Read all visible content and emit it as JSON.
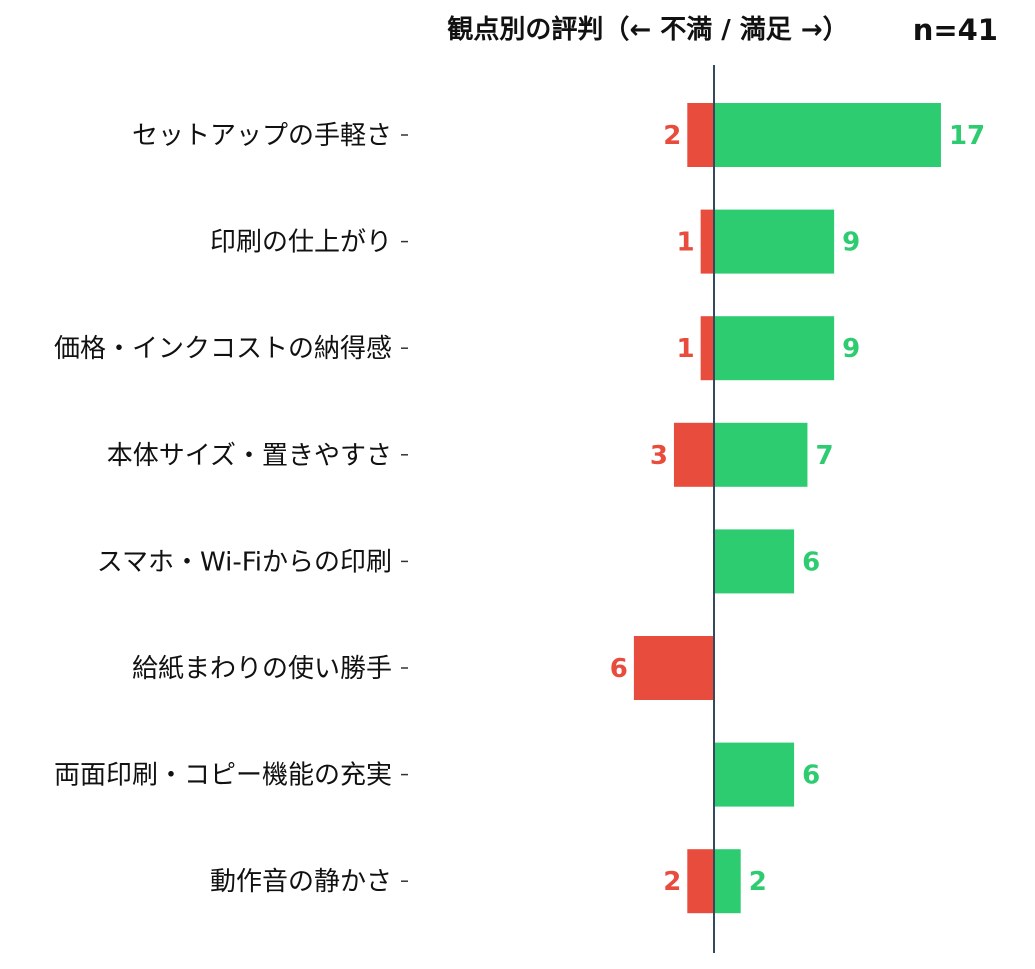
{
  "chart_data": {
    "type": "bar",
    "orientation": "horizontal-diverging",
    "title": "観点別の評判（← 不満 / 満足 →）",
    "sample_size": "n=41",
    "categories": [
      "セットアップの手軽さ",
      "印刷の仕上がり",
      "価格・インクコストの納得感",
      "本体サイズ・置きやすさ",
      "スマホ・Wi-Fiからの印刷",
      "給紙まわりの使い勝手",
      "両面印刷・コピー機能の充実",
      "動作音の静かさ"
    ],
    "series": [
      {
        "values": [
          2,
          1,
          1,
          3,
          0,
          6,
          0,
          2
        ],
        "color": "#e74c3c",
        "direction": "left"
      },
      {
        "values": [
          17,
          9,
          9,
          7,
          6,
          0,
          6,
          2
        ],
        "color": "#2ecc71",
        "direction": "right"
      }
    ],
    "axis_line_color": "#34495e",
    "grid": false,
    "legend": "none"
  }
}
